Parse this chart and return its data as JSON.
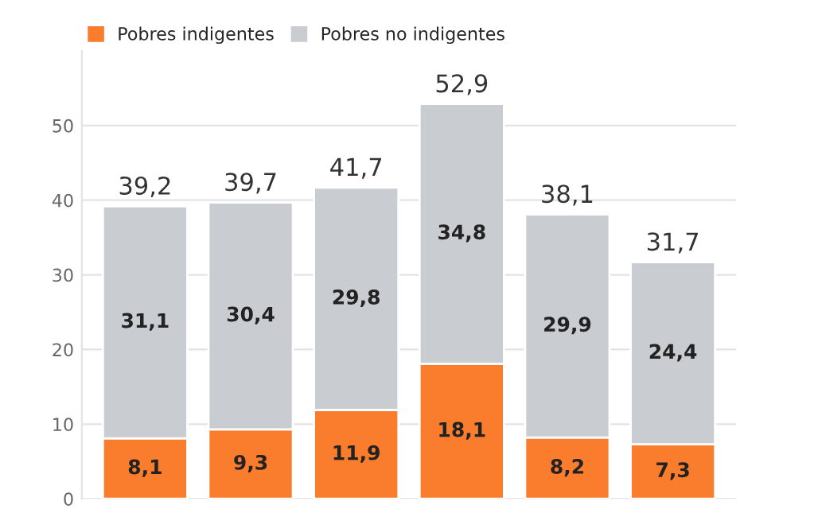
{
  "chart_data": {
    "type": "bar",
    "stacked": true,
    "categories": [
      null,
      null,
      null,
      null,
      null,
      null
    ],
    "series": [
      {
        "name": "Pobres indigentes",
        "color": "#fa7d2d",
        "values": [
          8.1,
          9.3,
          11.9,
          18.1,
          8.2,
          7.3
        ],
        "value_labels": [
          "8,1",
          "9,3",
          "11,9",
          "18,1",
          "8,2",
          "7,3"
        ]
      },
      {
        "name": "Pobres no indigentes",
        "color": "#c9ccd1",
        "values": [
          31.1,
          30.4,
          29.8,
          34.8,
          29.9,
          24.4
        ],
        "value_labels": [
          "31,1",
          "30,4",
          "29,8",
          "34,8",
          "29,9",
          "24,4"
        ]
      }
    ],
    "totals": [
      "39,2",
      "39,7",
      "41,7",
      "52,9",
      "38,1",
      "31,7"
    ],
    "ylim": [
      0,
      60
    ],
    "yticks": [
      0,
      10,
      20,
      30,
      40,
      50
    ],
    "grid": "y",
    "legend": "top left",
    "tick_labels": "y"
  }
}
